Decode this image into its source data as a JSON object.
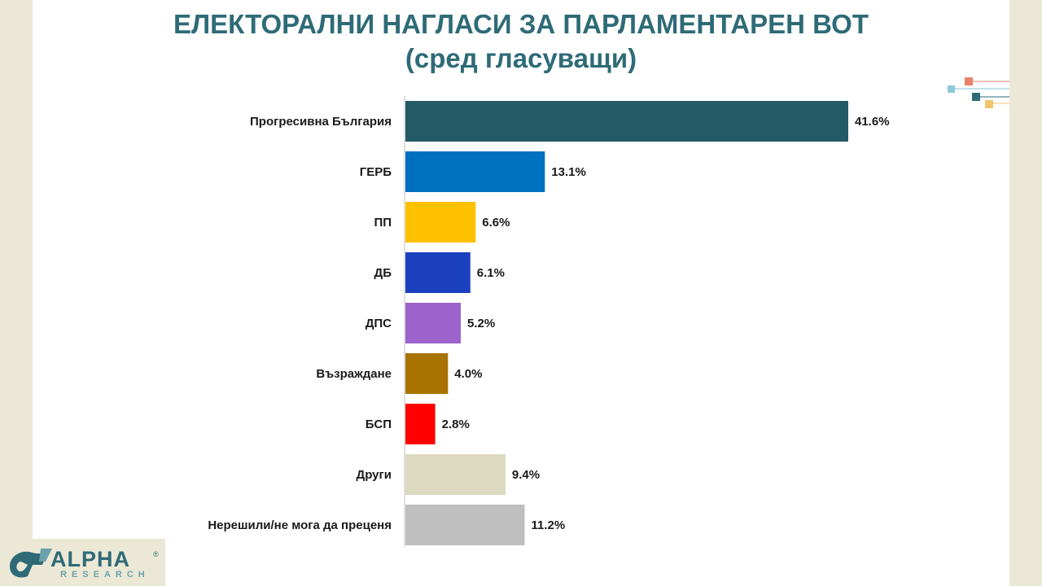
{
  "page": {
    "title": "ЕЛЕКТОРАЛНИ НАГЛАСИ ЗА ПАРЛАМЕНТАРЕН ВОТ",
    "subtitle": "(сред гласуващи)"
  },
  "logo": {
    "word": "ALPHA",
    "sub": "RESEARCH",
    "reg": "®"
  },
  "chart_data": {
    "type": "bar",
    "orientation": "horizontal",
    "categories": [
      "Прогресивна България",
      "ГЕРБ",
      "ПП",
      "ДБ",
      "ДПС",
      "Възраждане",
      "БСП",
      "Други",
      "Нерешили/не мога да преценя"
    ],
    "values": [
      41.6,
      13.1,
      6.6,
      6.1,
      5.2,
      4.0,
      2.8,
      9.4,
      11.2
    ],
    "value_labels": [
      "41.6%",
      "13.1%",
      "6.6%",
      "6.1%",
      "5.2%",
      "4.0%",
      "2.8%",
      "9.4%",
      "11.2%"
    ],
    "colors": [
      "#245a66",
      "#0070c0",
      "#ffc000",
      "#1a3fbf",
      "#9c63cc",
      "#a87300",
      "#ff0000",
      "#ddd9bf",
      "#bfbfbf"
    ],
    "xlim": [
      0,
      41.6
    ],
    "grid": false,
    "legend": "none"
  }
}
